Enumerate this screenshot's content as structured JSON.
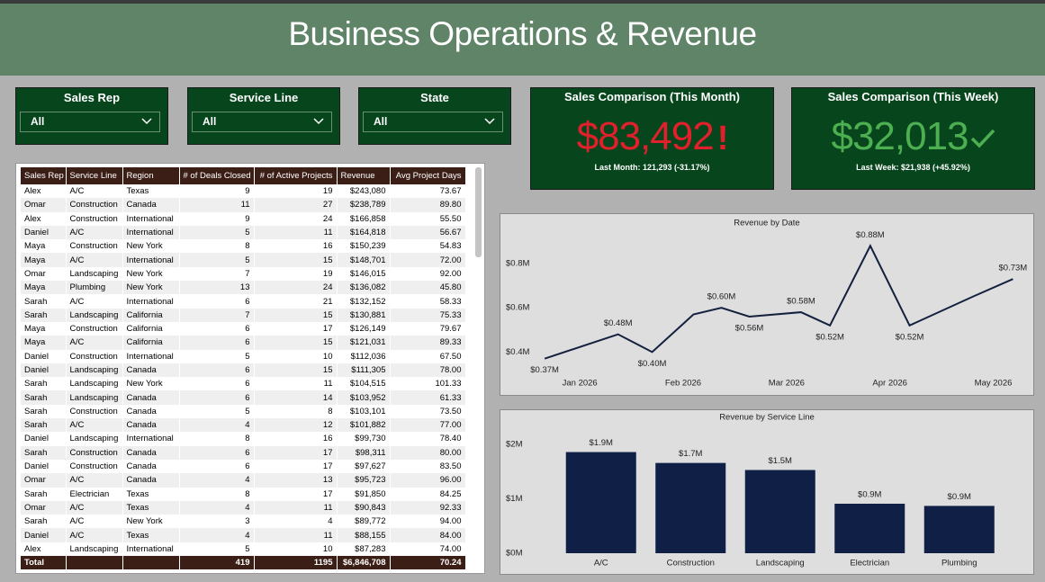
{
  "header": {
    "title": "Business Operations & Revenue"
  },
  "filters": [
    {
      "label": "Sales Rep",
      "value": "All"
    },
    {
      "label": "Service Line",
      "value": "All"
    },
    {
      "label": "State",
      "value": "All"
    }
  ],
  "cards": [
    {
      "title": "Sales Comparison (This Month)",
      "value": "$83,492",
      "icon": "!",
      "note": "Last Month: 121,293 (-31.17%)"
    },
    {
      "title": "Sales Comparison (This Week)",
      "value": "$32,013",
      "note": "Last Week: $21,938 (+45.92%)"
    }
  ],
  "table": {
    "columns": [
      "Sales Rep",
      "Service Line",
      "Region",
      "# of Deals Closed",
      "# of Active Projects",
      "Revenue",
      "Avg Project Days"
    ],
    "rows": [
      [
        "Alex",
        "A/C",
        "Texas",
        "9",
        "19",
        "$243,080",
        "73.67"
      ],
      [
        "Omar",
        "Construction",
        "Canada",
        "11",
        "27",
        "$238,789",
        "89.80"
      ],
      [
        "Alex",
        "Construction",
        "International",
        "9",
        "24",
        "$166,858",
        "55.50"
      ],
      [
        "Daniel",
        "A/C",
        "International",
        "5",
        "11",
        "$164,818",
        "56.67"
      ],
      [
        "Maya",
        "Construction",
        "New York",
        "8",
        "16",
        "$150,239",
        "54.83"
      ],
      [
        "Maya",
        "A/C",
        "International",
        "5",
        "15",
        "$148,701",
        "72.00"
      ],
      [
        "Omar",
        "Landscaping",
        "New York",
        "7",
        "19",
        "$146,015",
        "92.00"
      ],
      [
        "Maya",
        "Plumbing",
        "New York",
        "13",
        "24",
        "$136,082",
        "45.80"
      ],
      [
        "Sarah",
        "A/C",
        "International",
        "6",
        "21",
        "$132,152",
        "58.33"
      ],
      [
        "Sarah",
        "Landscaping",
        "California",
        "7",
        "15",
        "$130,881",
        "75.33"
      ],
      [
        "Maya",
        "Construction",
        "California",
        "6",
        "17",
        "$126,149",
        "79.67"
      ],
      [
        "Maya",
        "A/C",
        "California",
        "6",
        "15",
        "$121,031",
        "89.33"
      ],
      [
        "Daniel",
        "Construction",
        "International",
        "5",
        "10",
        "$112,036",
        "67.50"
      ],
      [
        "Daniel",
        "Landscaping",
        "Canada",
        "6",
        "15",
        "$111,305",
        "78.00"
      ],
      [
        "Sarah",
        "Landscaping",
        "New York",
        "6",
        "11",
        "$104,515",
        "101.33"
      ],
      [
        "Sarah",
        "Landscaping",
        "Canada",
        "6",
        "14",
        "$103,952",
        "61.33"
      ],
      [
        "Sarah",
        "Construction",
        "Canada",
        "5",
        "8",
        "$103,101",
        "73.50"
      ],
      [
        "Sarah",
        "A/C",
        "Canada",
        "4",
        "12",
        "$101,882",
        "77.00"
      ],
      [
        "Daniel",
        "Landscaping",
        "International",
        "8",
        "16",
        "$99,730",
        "78.40"
      ],
      [
        "Sarah",
        "Construction",
        "Canada",
        "6",
        "17",
        "$98,311",
        "80.00"
      ],
      [
        "Daniel",
        "Construction",
        "Canada",
        "6",
        "17",
        "$97,627",
        "83.50"
      ],
      [
        "Omar",
        "A/C",
        "Canada",
        "4",
        "13",
        "$95,723",
        "96.00"
      ],
      [
        "Sarah",
        "Electrician",
        "Texas",
        "8",
        "17",
        "$91,850",
        "84.25"
      ],
      [
        "Omar",
        "A/C",
        "Texas",
        "4",
        "11",
        "$90,843",
        "92.33"
      ],
      [
        "Sarah",
        "A/C",
        "New York",
        "3",
        "4",
        "$89,772",
        "94.00"
      ],
      [
        "Daniel",
        "A/C",
        "Texas",
        "4",
        "11",
        "$88,155",
        "84.00"
      ],
      [
        "Alex",
        "Landscaping",
        "International",
        "5",
        "10",
        "$87,283",
        "74.00"
      ]
    ],
    "total": [
      "Total",
      null,
      null,
      "419",
      "1195",
      "$6,846,708",
      "70.24"
    ]
  },
  "chart_data": [
    {
      "type": "line",
      "title": "Revenue by Date",
      "color": "#13213f",
      "x": [
        -0.34,
        0.37,
        0.7,
        1.1,
        1.37,
        1.64,
        2.14,
        2.42,
        2.81,
        3.19,
        3.8,
        4.19
      ],
      "values": [
        370000,
        480000,
        400000,
        570000,
        600000,
        560000,
        580000,
        520000,
        880000,
        520000,
        650000,
        730000
      ],
      "value_labels": [
        "$0.37M",
        "$0.48M",
        "$0.40M",
        null,
        "$0.60M",
        "$0.56M",
        "$0.58M",
        "$0.52M",
        "$0.88M",
        "$0.52M",
        null,
        "$0.73M"
      ],
      "xlim": [
        -0.55,
        4.3
      ],
      "xticks": [
        {
          "value": 0,
          "label": "Jan 2026"
        },
        {
          "value": 1,
          "label": "Feb 2026"
        },
        {
          "value": 2,
          "label": "Mar 2026"
        },
        {
          "value": 3,
          "label": "Apr 2026"
        },
        {
          "value": 4,
          "label": "May 2026"
        }
      ],
      "ylim": [
        320000,
        930000
      ],
      "yticks": [
        {
          "value": 400000,
          "label": "$0.4M"
        },
        {
          "value": 600000,
          "label": "$0.6M"
        },
        {
          "value": 800000,
          "label": "$0.8M"
        }
      ]
    },
    {
      "type": "bar",
      "title": "Revenue by Service Line",
      "color": "#0f1f45",
      "categories": [
        "A/C",
        "Construction",
        "Landscaping",
        "Electrician",
        "Plumbing"
      ],
      "values": [
        1860000,
        1660000,
        1530000,
        910000,
        870000
      ],
      "value_labels": [
        "$1.9M",
        "$1.7M",
        "$1.5M",
        "$0.9M",
        "$0.9M"
      ],
      "ylim": [
        0,
        2200000
      ],
      "yticks": [
        {
          "value": 0,
          "label": "$0M"
        },
        {
          "value": 1000000,
          "label": "$1M"
        },
        {
          "value": 2000000,
          "label": "$2M"
        }
      ]
    }
  ]
}
